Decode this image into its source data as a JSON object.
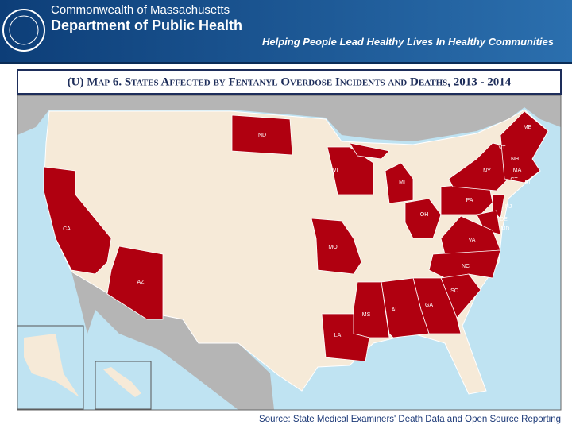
{
  "header": {
    "org_line1": "Commonwealth of Massachusetts",
    "org_line2": "Department of Public Health",
    "tagline": "Helping People Lead Healthy Lives In Healthy Communities"
  },
  "map": {
    "title": "(U) Map 6. States Affected by Fentanyl Overdose Incidents and Deaths, 2013 - 2014",
    "state_labels": [
      "ME",
      "ND",
      "VT",
      "NH",
      "WI",
      "MI",
      "NY",
      "MA",
      "CT",
      "RI",
      "PA",
      "NJ",
      "CA",
      "OH",
      "DE",
      "MD",
      "MO",
      "VA",
      "NC",
      "AZ",
      "SC",
      "MS",
      "AL",
      "GA",
      "LA"
    ]
  },
  "footer": {
    "source": "Source: State Medical Examiners' Death Data and Open Source Reporting"
  }
}
